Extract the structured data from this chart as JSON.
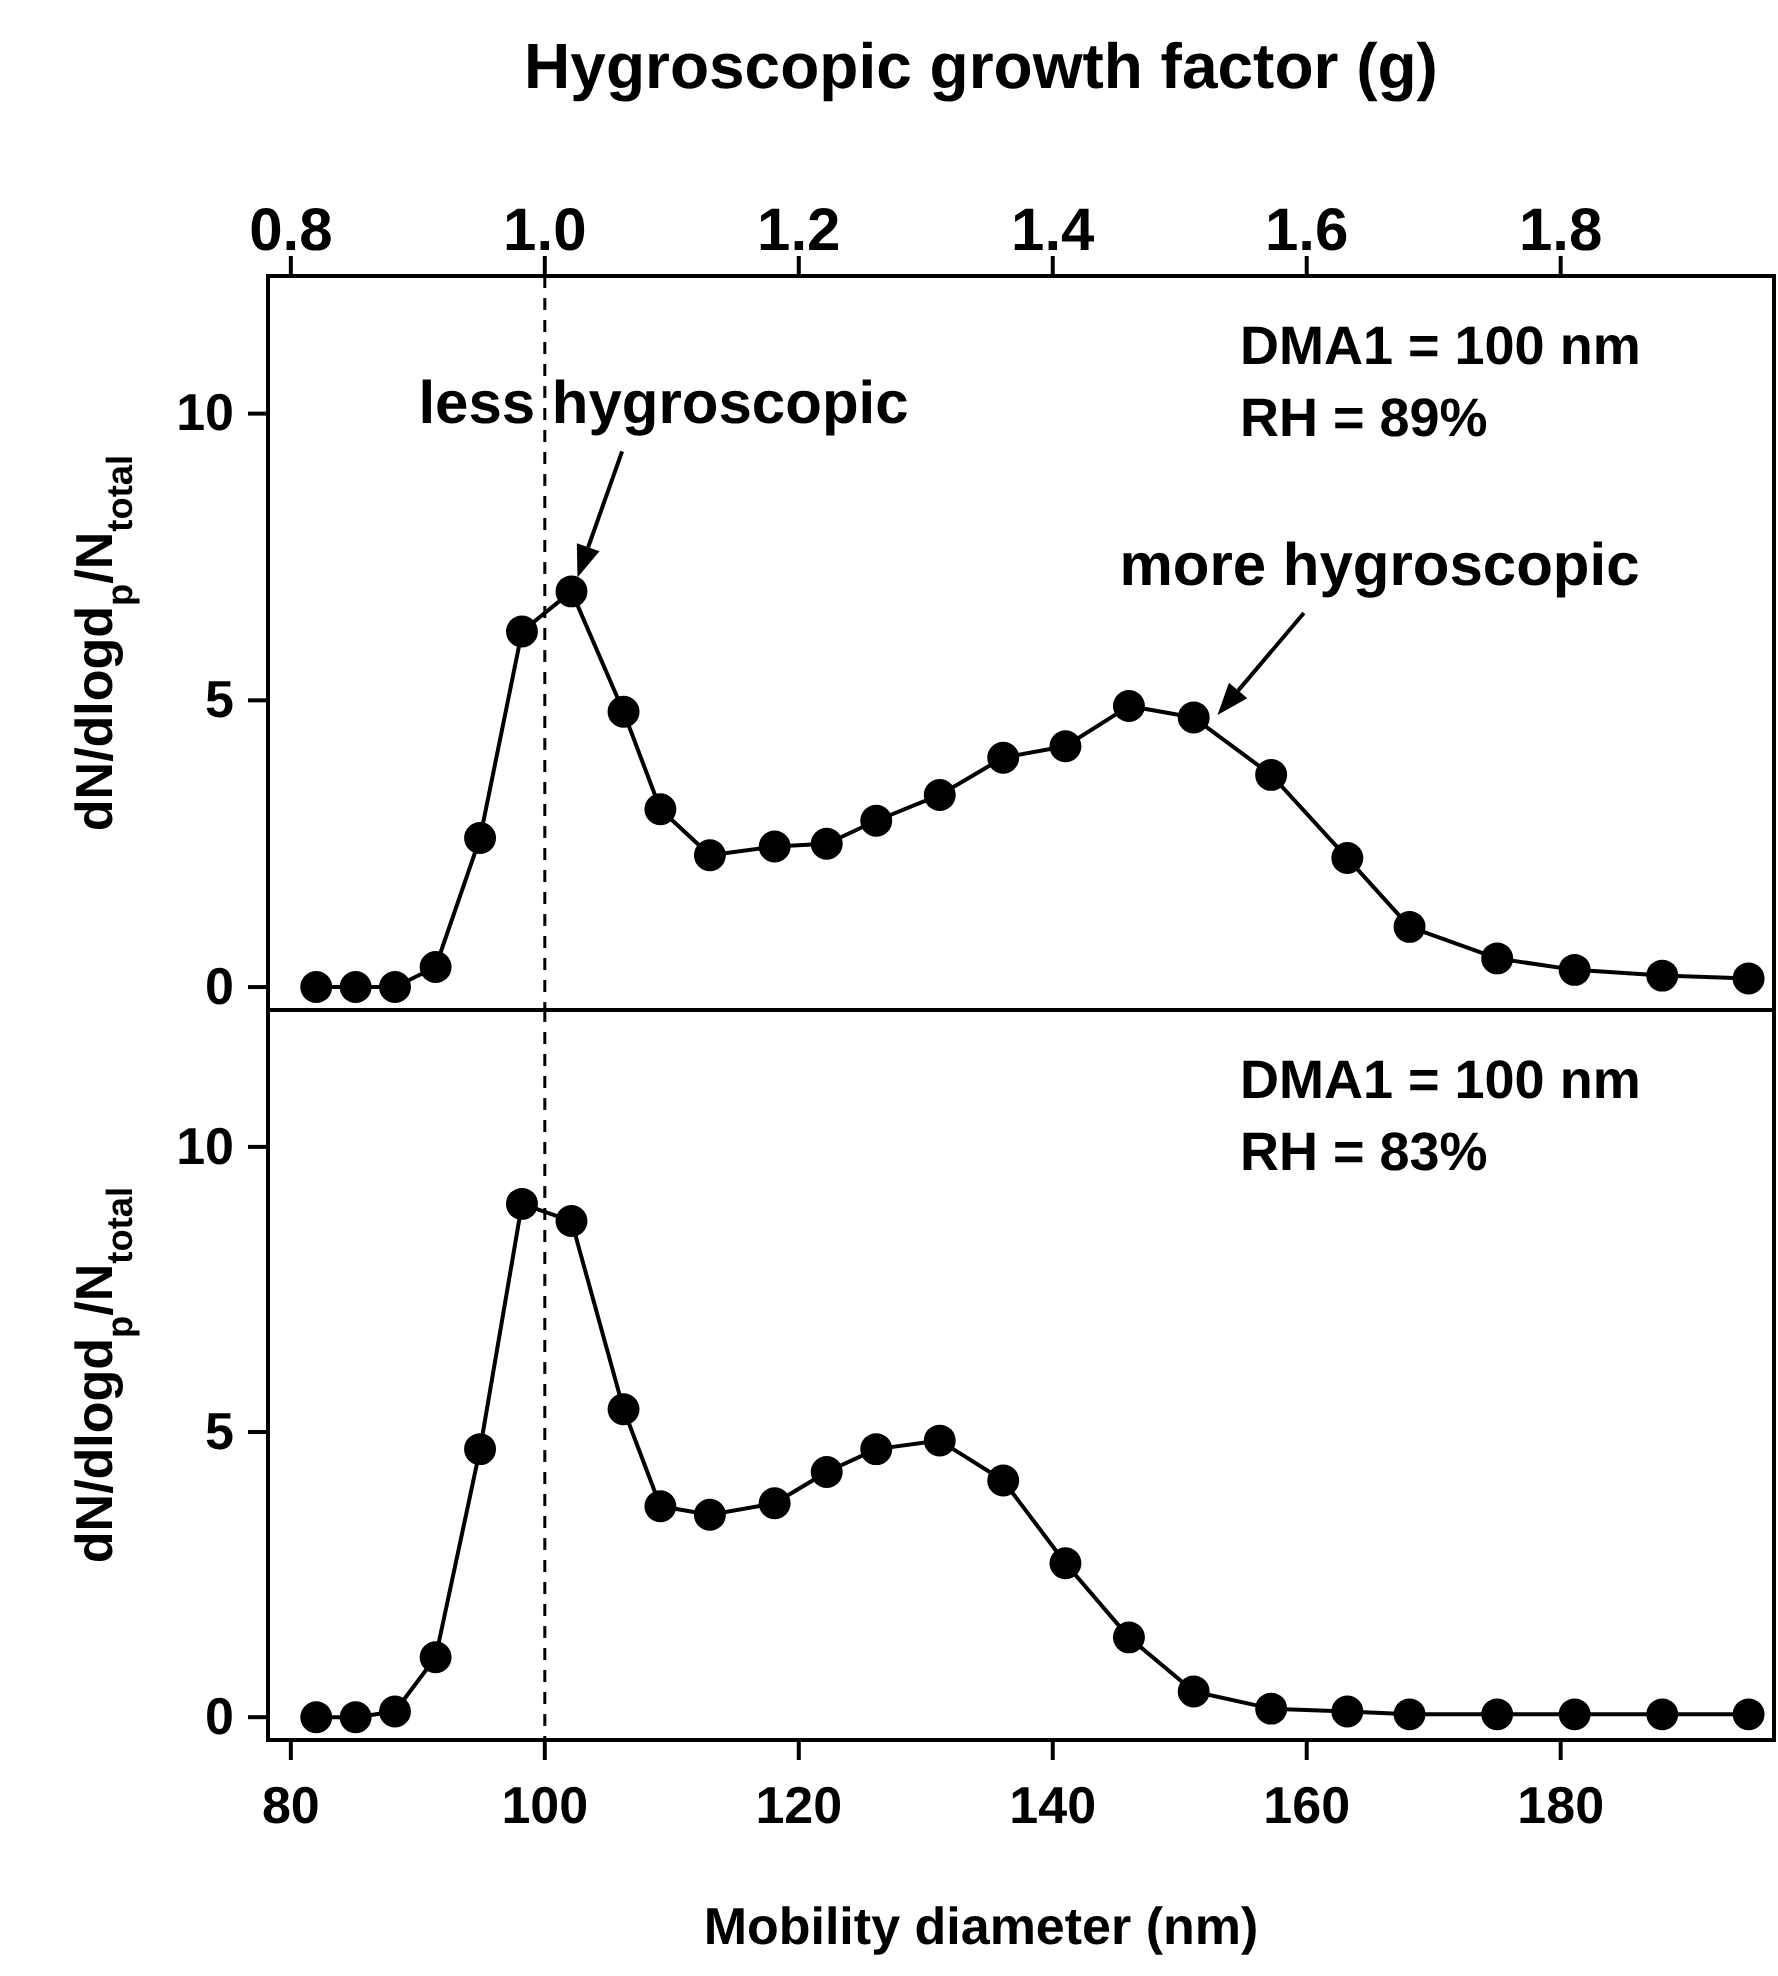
{
  "chart_data": [
    {
      "type": "line",
      "x2label": "Hygroscopic growth factor (g)",
      "ylabel": "dN/dlogd$_{p}$/N$_{total}$",
      "xlim": [
        78.2,
        196.8
      ],
      "x2lim": [
        0.782,
        1.968
      ],
      "x2ticks": [
        {
          "value": 0.8,
          "label": "0.8"
        },
        {
          "value": 1.0,
          "label": "1.0"
        },
        {
          "value": 1.2,
          "label": "1.2"
        },
        {
          "value": 1.4,
          "label": "1.4"
        },
        {
          "value": 1.6,
          "label": "1.6"
        },
        {
          "value": 1.8,
          "label": "1.8"
        }
      ],
      "ylim": [
        -0.4,
        12.4
      ],
      "yticks": [
        0,
        5,
        10
      ],
      "tick_labels": "y",
      "marker": "circle",
      "line_style": "solid",
      "x": [
        82.0,
        85.1,
        88.2,
        91.4,
        94.9,
        98.2,
        102.1,
        106.2,
        109.1,
        113.0,
        118.1,
        122.2,
        126.1,
        131.1,
        136.1,
        141.0,
        146.0,
        151.1,
        157.2,
        163.2,
        168.1,
        175.0,
        181.1,
        188.0,
        194.8
      ],
      "series": [
        {
          "color": "#000000",
          "values": [
            0,
            0,
            0,
            0.35,
            2.6,
            6.2,
            6.9,
            4.8,
            3.1,
            2.3,
            2.45,
            2.5,
            2.9,
            3.35,
            4.0,
            4.2,
            4.9,
            4.7,
            3.7,
            2.25,
            1.05,
            0.5,
            0.3,
            0.2,
            0.15
          ]
        }
      ],
      "ref_lines": [
        {
          "axis": "x",
          "value": 100,
          "line_style": "dashed",
          "color": "#000000"
        }
      ],
      "annotations": [
        "DMA1 = 100 nm",
        "RH = 89%",
        {
          "text": "less hygroscopic",
          "x": 102.1,
          "y": 6.9
        },
        {
          "text": "more hygroscopic",
          "x": 152.5,
          "y": 4.5
        }
      ]
    },
    {
      "type": "line",
      "xlabel": "Mobility diameter (nm)",
      "ylabel": "dN/dlogd$_{p}$/N$_{total}$",
      "xlim": [
        78.2,
        196.8
      ],
      "xticks": [
        80,
        100,
        120,
        140,
        160,
        180
      ],
      "ylim": [
        -0.4,
        12.4
      ],
      "yticks": [
        0,
        5,
        10
      ],
      "marker": "circle",
      "line_style": "solid",
      "x": [
        82.0,
        85.1,
        88.2,
        91.4,
        94.9,
        98.2,
        102.1,
        106.2,
        109.1,
        113.0,
        118.1,
        122.2,
        126.1,
        131.1,
        136.1,
        141.0,
        146.0,
        151.1,
        157.2,
        163.2,
        168.1,
        175.0,
        181.1,
        188.0,
        194.8
      ],
      "series": [
        {
          "color": "#000000",
          "values": [
            0,
            0,
            0.1,
            1.05,
            4.7,
            9.0,
            8.7,
            5.4,
            3.7,
            3.55,
            3.75,
            4.3,
            4.7,
            4.85,
            4.15,
            2.7,
            1.4,
            0.45,
            0.15,
            0.1,
            0.05,
            0.05,
            0.05,
            0.05,
            0.05
          ]
        }
      ],
      "ref_lines": [
        {
          "axis": "x",
          "value": 100,
          "line_style": "dashed",
          "color": "#000000"
        }
      ],
      "annotations": [
        "DMA1 = 100 nm",
        "RH = 83%"
      ]
    }
  ]
}
